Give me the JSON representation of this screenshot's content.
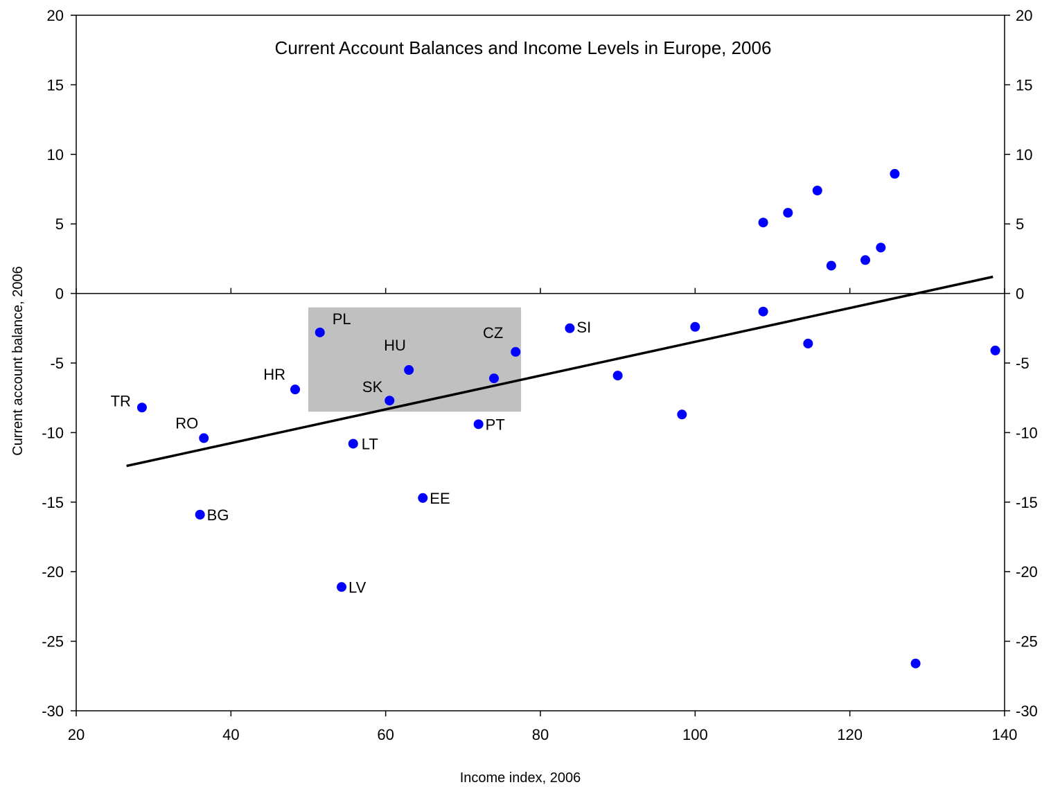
{
  "chart_data": {
    "type": "scatter",
    "title": "Current Account Balances and Income Levels in Europe, 2006",
    "xlabel": "Income index, 2006",
    "ylabel": "Current account balance, 2006",
    "xlim": [
      20,
      140
    ],
    "ylim": [
      -30,
      20
    ],
    "x_ticks": [
      20,
      40,
      60,
      80,
      100,
      120,
      140
    ],
    "y_ticks": [
      20,
      15,
      10,
      5,
      0,
      -5,
      -10,
      -15,
      -20,
      -25,
      -30
    ],
    "grid": false,
    "legend": "none",
    "marker_color": "#0000ff",
    "line_color": "#000000",
    "highlight_color": "#c0c0c0",
    "highlight_region": {
      "x": [
        50,
        77.5
      ],
      "y": [
        -8.5,
        -1
      ]
    },
    "trendline": {
      "x": [
        26.5,
        138.5
      ],
      "y": [
        -12.4,
        1.2
      ]
    },
    "points": [
      {
        "label": "TR",
        "x": 28.5,
        "y": -8.2
      },
      {
        "label": "RO",
        "x": 36.5,
        "y": -10.4
      },
      {
        "label": "BG",
        "x": 36.0,
        "y": -15.9
      },
      {
        "label": "HR",
        "x": 48.3,
        "y": -6.9
      },
      {
        "label": "PL",
        "x": 51.5,
        "y": -2.8
      },
      {
        "label": "LV",
        "x": 54.3,
        "y": -21.1
      },
      {
        "label": "LT",
        "x": 55.8,
        "y": -10.8
      },
      {
        "label": "SK",
        "x": 60.5,
        "y": -7.7
      },
      {
        "label": "HU",
        "x": 63.0,
        "y": -5.5
      },
      {
        "label": "EE",
        "x": 64.8,
        "y": -14.7
      },
      {
        "label": "PT",
        "x": 72.0,
        "y": -9.4
      },
      {
        "label": "",
        "x": 74.0,
        "y": -6.1
      },
      {
        "label": "CZ",
        "x": 76.8,
        "y": -4.2
      },
      {
        "label": "SI",
        "x": 83.8,
        "y": -2.5
      },
      {
        "label": "",
        "x": 90.0,
        "y": -5.9
      },
      {
        "label": "",
        "x": 98.3,
        "y": -8.7
      },
      {
        "label": "",
        "x": 100.0,
        "y": -2.4
      },
      {
        "label": "",
        "x": 108.8,
        "y": -1.3
      },
      {
        "label": "",
        "x": 108.8,
        "y": 5.1
      },
      {
        "label": "",
        "x": 112.0,
        "y": 5.8
      },
      {
        "label": "",
        "x": 114.6,
        "y": -3.6
      },
      {
        "label": "",
        "x": 115.8,
        "y": 7.4
      },
      {
        "label": "",
        "x": 117.6,
        "y": 2.0
      },
      {
        "label": "",
        "x": 122.0,
        "y": 2.4
      },
      {
        "label": "",
        "x": 124.0,
        "y": 3.3
      },
      {
        "label": "",
        "x": 125.8,
        "y": 8.6
      },
      {
        "label": "",
        "x": 128.5,
        "y": -26.6
      },
      {
        "label": "",
        "x": 138.8,
        "y": -4.1
      }
    ]
  }
}
